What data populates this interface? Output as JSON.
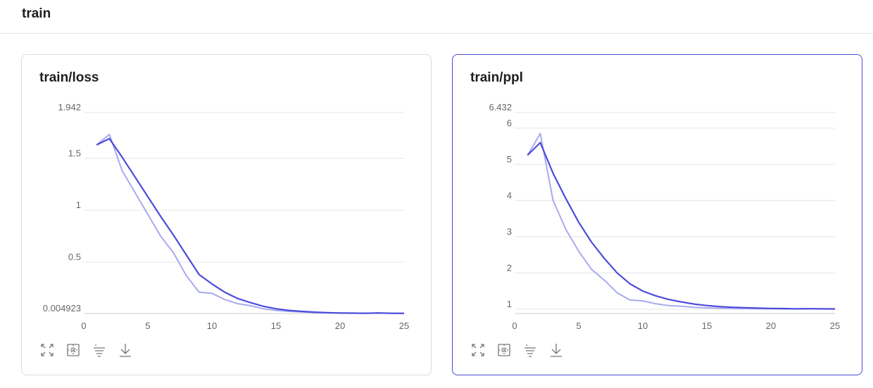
{
  "section": {
    "title": "train"
  },
  "colors": {
    "accent": "#4a4ad8",
    "line_main": "#4b4bdc",
    "line_raw": "#a9a9f0",
    "grid": "#e6e6e6"
  },
  "cards": [
    {
      "title": "train/loss",
      "active": false,
      "toolbar": [
        "expand-icon",
        "fit-selection-icon",
        "filter-icon",
        "download-icon"
      ]
    },
    {
      "title": "train/ppl",
      "active": true,
      "toolbar": [
        "expand-icon",
        "fit-selection-icon",
        "filter-icon",
        "download-icon"
      ]
    }
  ],
  "chart_data": [
    {
      "type": "line",
      "title": "train/loss",
      "xlim": [
        0,
        25
      ],
      "ylim": [
        0.004923,
        1.942
      ],
      "x_ticks": [
        0,
        5,
        10,
        15,
        20,
        25
      ],
      "y_ticks": [
        0.004923,
        0.5,
        1,
        1.5,
        1.942
      ],
      "y_tick_labels": [
        "0.004923",
        "0.5",
        "1",
        "1.5",
        "1.942"
      ],
      "grid": true,
      "x": [
        1,
        2,
        3,
        4,
        5,
        6,
        7,
        8,
        9,
        10,
        11,
        12,
        13,
        14,
        15,
        16,
        17,
        18,
        19,
        20,
        21,
        22,
        23,
        24,
        25
      ],
      "series": [
        {
          "role": "raw",
          "values": [
            1.63,
            1.73,
            1.38,
            1.17,
            0.96,
            0.75,
            0.59,
            0.37,
            0.21,
            0.2,
            0.14,
            0.1,
            0.08,
            0.05,
            0.035,
            0.025,
            0.02,
            0.015,
            0.012,
            0.01,
            0.008,
            0.007,
            0.012,
            0.006,
            0.006
          ]
        },
        {
          "role": "smoothed",
          "values": [
            1.63,
            1.69,
            1.51,
            1.32,
            1.13,
            0.94,
            0.76,
            0.57,
            0.38,
            0.29,
            0.21,
            0.15,
            0.11,
            0.075,
            0.05,
            0.035,
            0.025,
            0.018,
            0.013,
            0.01,
            0.008,
            0.007,
            0.01,
            0.007,
            0.006
          ]
        }
      ]
    },
    {
      "type": "line",
      "title": "train/ppl",
      "xlim": [
        0,
        25
      ],
      "ylim": [
        0.88,
        6.432
      ],
      "x_ticks": [
        0,
        5,
        10,
        15,
        20,
        25
      ],
      "y_ticks": [
        1,
        2,
        3,
        4,
        5,
        6,
        6.432
      ],
      "y_tick_labels": [
        "1",
        "2",
        "3",
        "4",
        "5",
        "6",
        "6.432"
      ],
      "grid": true,
      "x": [
        1,
        2,
        3,
        4,
        5,
        6,
        7,
        8,
        9,
        10,
        11,
        12,
        13,
        14,
        15,
        16,
        17,
        18,
        19,
        20,
        21,
        22,
        23,
        24,
        25
      ],
      "series": [
        {
          "role": "raw",
          "values": [
            5.25,
            5.85,
            4.0,
            3.2,
            2.6,
            2.1,
            1.8,
            1.45,
            1.25,
            1.23,
            1.15,
            1.1,
            1.08,
            1.05,
            1.035,
            1.025,
            1.02,
            1.015,
            1.012,
            1.01,
            1.008,
            1.007,
            1.012,
            1.006,
            1.006
          ]
        },
        {
          "role": "smoothed",
          "values": [
            5.25,
            5.6,
            4.75,
            4.05,
            3.4,
            2.85,
            2.4,
            2.0,
            1.7,
            1.5,
            1.37,
            1.27,
            1.2,
            1.14,
            1.1,
            1.07,
            1.05,
            1.04,
            1.03,
            1.02,
            1.015,
            1.01,
            1.012,
            1.008,
            1.006
          ]
        }
      ]
    }
  ]
}
